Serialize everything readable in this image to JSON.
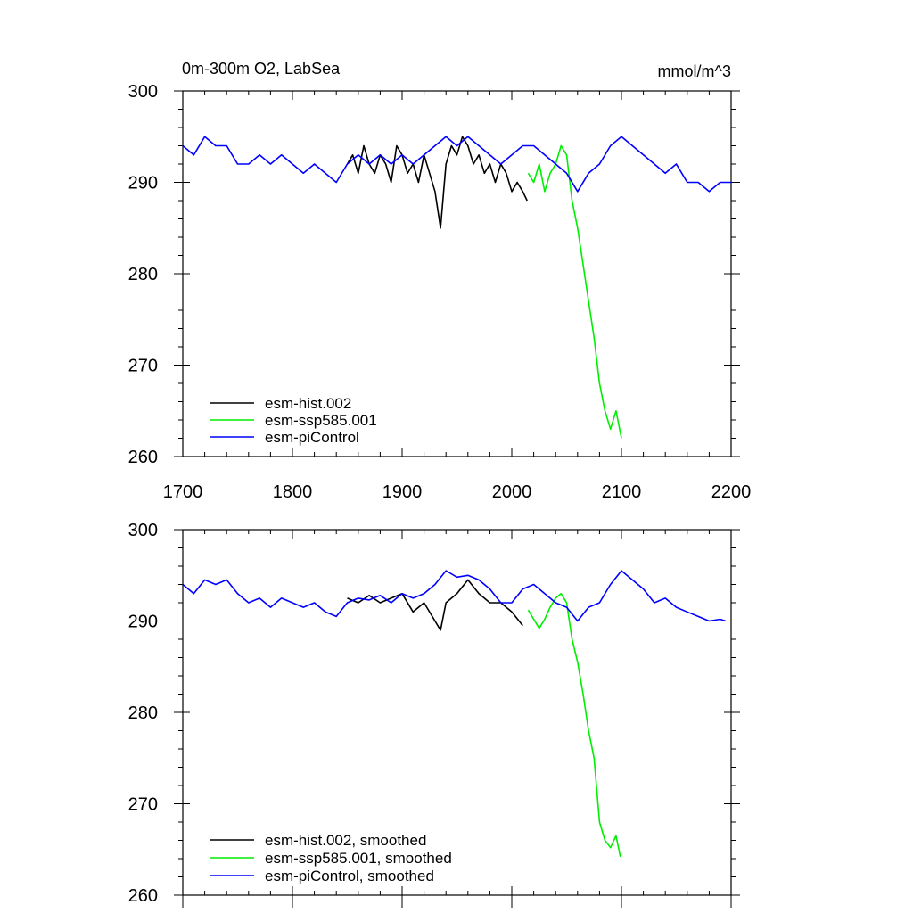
{
  "chart_data": [
    {
      "type": "line",
      "title_left": "0m-300m O2, LabSea",
      "title_right": "mmol/m^3",
      "xlim": [
        1700,
        2200
      ],
      "ylim": [
        260,
        300
      ],
      "xticks": [
        1700,
        1800,
        1900,
        2000,
        2100,
        2200
      ],
      "xtick_labels": [
        "1700",
        "1800",
        "1900",
        "2000",
        "2100",
        "2200"
      ],
      "yticks": [
        260,
        270,
        280,
        290,
        300
      ],
      "ytick_labels": [
        "260",
        "270",
        "280",
        "290",
        "300"
      ],
      "legend_position": "bottom-left",
      "series": [
        {
          "name": "esm-hist.002",
          "color": "#000000",
          "x": [
            1850,
            1855,
            1860,
            1865,
            1870,
            1875,
            1880,
            1885,
            1890,
            1895,
            1900,
            1905,
            1910,
            1915,
            1920,
            1925,
            1930,
            1935,
            1940,
            1945,
            1950,
            1955,
            1960,
            1965,
            1970,
            1975,
            1980,
            1985,
            1990,
            1995,
            2000,
            2005,
            2010,
            2014
          ],
          "y": [
            292,
            293,
            291,
            294,
            292,
            291,
            293,
            292,
            290,
            294,
            293,
            291,
            292,
            290,
            293,
            291,
            289,
            285,
            292,
            294,
            293,
            295,
            294,
            292,
            293,
            291,
            292,
            290,
            292,
            291,
            289,
            290,
            289,
            288
          ]
        },
        {
          "name": "esm-ssp585.001",
          "color": "#00ee00",
          "x": [
            2015,
            2020,
            2025,
            2030,
            2035,
            2040,
            2045,
            2050,
            2055,
            2060,
            2065,
            2070,
            2075,
            2080,
            2085,
            2090,
            2095,
            2100
          ],
          "y": [
            291,
            290,
            292,
            289,
            291,
            292,
            294,
            293,
            288,
            285,
            281,
            277,
            273,
            268,
            265,
            263,
            265,
            262
          ]
        },
        {
          "name": "esm-piControl",
          "color": "#0000ff",
          "x": [
            1700,
            1710,
            1720,
            1730,
            1740,
            1750,
            1760,
            1770,
            1780,
            1790,
            1800,
            1810,
            1820,
            1830,
            1840,
            1850,
            1860,
            1870,
            1880,
            1890,
            1900,
            1910,
            1920,
            1930,
            1940,
            1950,
            1960,
            1970,
            1980,
            1990,
            2000,
            2010,
            2020,
            2030,
            2040,
            2050,
            2060,
            2070,
            2080,
            2090,
            2100,
            2110,
            2120,
            2130,
            2140,
            2150,
            2160,
            2170,
            2180,
            2190,
            2200
          ],
          "y": [
            294,
            293,
            295,
            294,
            294,
            292,
            292,
            293,
            292,
            293,
            292,
            291,
            292,
            291,
            290,
            292,
            293,
            292,
            293,
            292,
            293,
            292,
            293,
            294,
            295,
            294,
            295,
            294,
            293,
            292,
            293,
            294,
            294,
            293,
            292,
            291,
            289,
            291,
            292,
            294,
            295,
            294,
            293,
            292,
            291,
            292,
            290,
            290,
            289,
            290,
            290
          ]
        }
      ]
    },
    {
      "type": "line",
      "xlim": [
        1700,
        2200
      ],
      "ylim": [
        260,
        300
      ],
      "yticks": [
        260,
        270,
        280,
        290,
        300
      ],
      "ytick_labels": [
        "260",
        "270",
        "280",
        "290",
        "300"
      ],
      "legend_position": "bottom-left",
      "series": [
        {
          "name": "esm-hist.002, smoothed",
          "color": "#000000",
          "x": [
            1850,
            1860,
            1870,
            1880,
            1890,
            1900,
            1910,
            1920,
            1930,
            1935,
            1940,
            1950,
            1960,
            1970,
            1980,
            1990,
            2000,
            2010
          ],
          "y": [
            292.5,
            292,
            292.8,
            292,
            292.5,
            293,
            291,
            292,
            290,
            289,
            292,
            293,
            294.5,
            293,
            292,
            292,
            291,
            289.5
          ]
        },
        {
          "name": "esm-ssp585.001, smoothed",
          "color": "#00ee00",
          "x": [
            2015,
            2020,
            2025,
            2030,
            2035,
            2040,
            2045,
            2050,
            2055,
            2060,
            2065,
            2070,
            2075,
            2080,
            2085,
            2090,
            2095,
            2099
          ],
          "y": [
            291.2,
            290.2,
            289.2,
            290.2,
            291.5,
            292.5,
            293,
            292,
            288,
            285.5,
            282,
            278,
            275,
            268,
            266,
            265.2,
            266.5,
            264.2
          ]
        },
        {
          "name": "esm-piControl, smoothed",
          "color": "#0000ff",
          "x": [
            1700,
            1710,
            1720,
            1730,
            1740,
            1750,
            1760,
            1770,
            1780,
            1790,
            1800,
            1810,
            1820,
            1830,
            1840,
            1850,
            1860,
            1870,
            1880,
            1890,
            1900,
            1910,
            1920,
            1930,
            1940,
            1950,
            1960,
            1970,
            1980,
            1990,
            2000,
            2010,
            2020,
            2030,
            2040,
            2050,
            2060,
            2070,
            2080,
            2090,
            2100,
            2110,
            2120,
            2130,
            2140,
            2150,
            2160,
            2170,
            2180,
            2190,
            2195
          ],
          "y": [
            294,
            293,
            294.5,
            294,
            294.5,
            293,
            292,
            292.5,
            291.5,
            292.5,
            292,
            291.5,
            292,
            291,
            290.5,
            292,
            292.5,
            292.3,
            292.8,
            292,
            293,
            292.5,
            293,
            294,
            295.5,
            294.8,
            295,
            294.5,
            293.5,
            292,
            292,
            293.5,
            294,
            293,
            292,
            291.5,
            290,
            291.5,
            292,
            294,
            295.5,
            294.5,
            293.5,
            292,
            292.5,
            291.5,
            291,
            290.5,
            290,
            290.2,
            290
          ]
        }
      ]
    }
  ]
}
